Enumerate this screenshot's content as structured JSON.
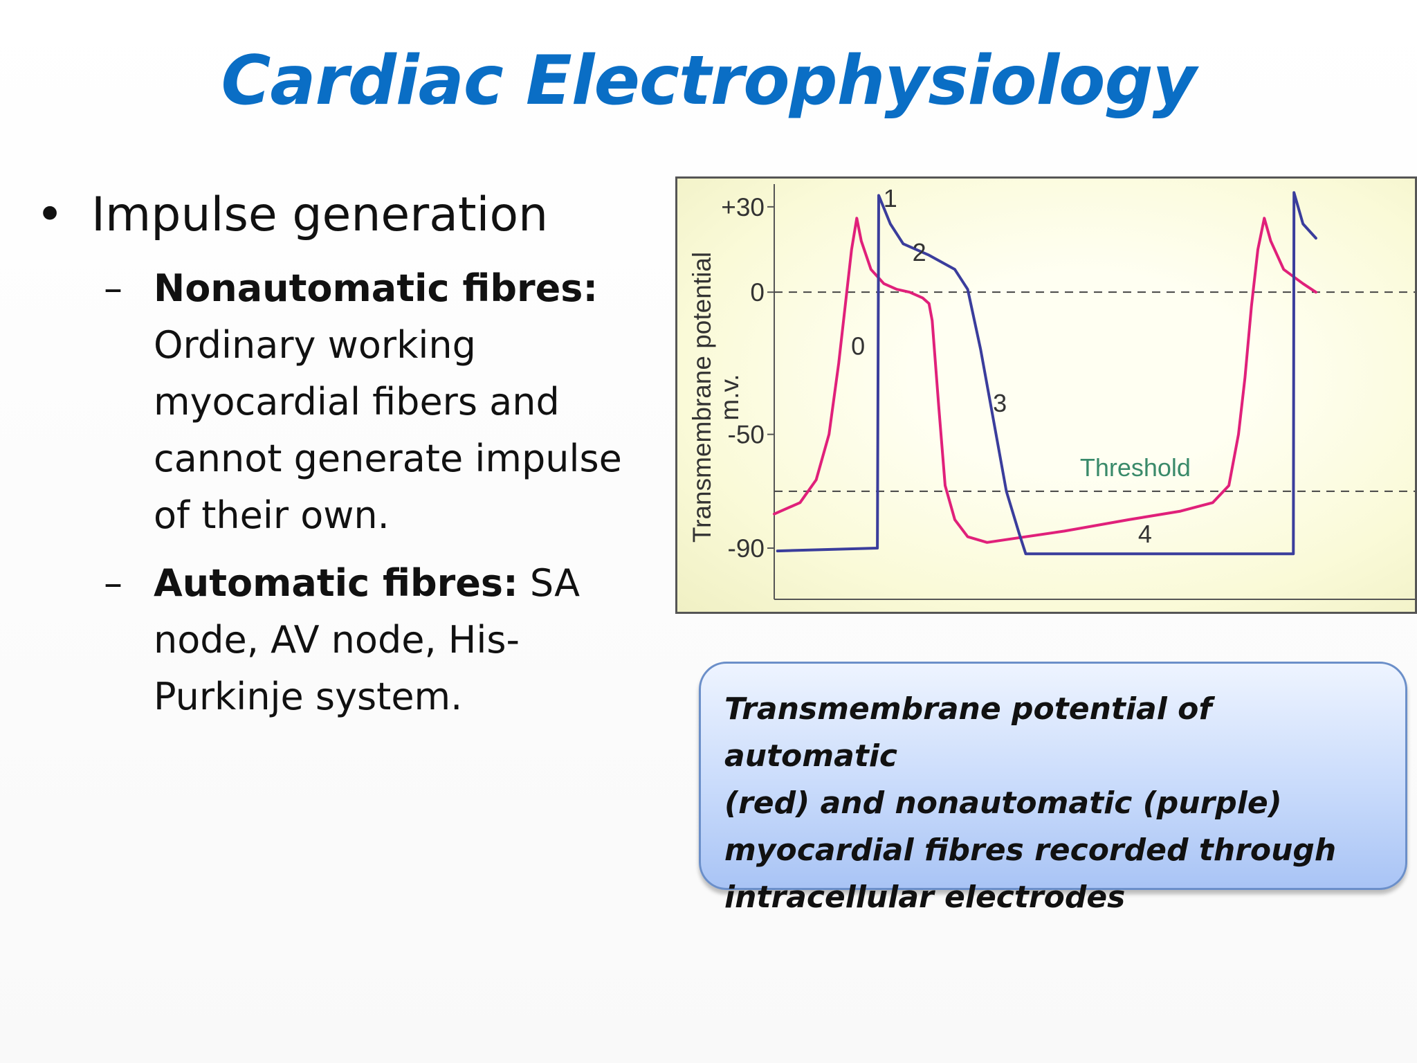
{
  "slide": {
    "title": "Cardiac Electrophysiology",
    "bullet_1": "Impulse generation",
    "sub_1_bold": "Nonautomatic fibres:",
    "sub_1_lines": [
      "Ordinary working",
      "myocardial fibers and",
      "cannot generate impulse",
      "of their own."
    ],
    "sub_2_bold": "Automatic fibres:",
    "sub_2_first": " SA",
    "sub_2_lines": [
      "node, AV node, His-",
      "Purkinje system."
    ],
    "dash": "–",
    "bullet_glyph": "•"
  },
  "chart_data": {
    "type": "line",
    "ylabel": "Transmembrane potential",
    "ylabel_unit": "m.v.",
    "yticks": [
      "+30",
      "0",
      "-50",
      "-90"
    ],
    "ylim": [
      -108,
      38
    ],
    "xlim": [
      0,
      100
    ],
    "reference_lines": [
      {
        "y": 0,
        "label": ""
      },
      {
        "y": -70,
        "label": "Threshold",
        "color": "#3a8a6a"
      }
    ],
    "phase_labels": [
      {
        "text": "0",
        "x": 13,
        "y": -22
      },
      {
        "text": "1",
        "x": 18,
        "y": 30
      },
      {
        "text": "2",
        "x": 22.5,
        "y": 11
      },
      {
        "text": "3",
        "x": 35,
        "y": -42
      },
      {
        "text": "4",
        "x": 57.5,
        "y": -88
      }
    ],
    "series": [
      {
        "name": "automatic",
        "color": "#e0207a",
        "points": [
          [
            0,
            -78
          ],
          [
            4,
            -74
          ],
          [
            6.5,
            -66
          ],
          [
            8.5,
            -50
          ],
          [
            10,
            -25
          ],
          [
            11,
            -5
          ],
          [
            12,
            15
          ],
          [
            12.8,
            26
          ],
          [
            13.5,
            18
          ],
          [
            15,
            8
          ],
          [
            17,
            3
          ],
          [
            19,
            1
          ],
          [
            21,
            0
          ],
          [
            23,
            -2
          ],
          [
            24,
            -4
          ],
          [
            24.5,
            -10
          ],
          [
            25.5,
            -40
          ],
          [
            26.5,
            -68
          ],
          [
            28,
            -80
          ],
          [
            30,
            -86
          ],
          [
            33,
            -88
          ],
          [
            36,
            -87
          ],
          [
            45,
            -84
          ],
          [
            55,
            -80
          ],
          [
            63,
            -77
          ],
          [
            68,
            -74
          ],
          [
            70.5,
            -68
          ],
          [
            72,
            -50
          ],
          [
            73,
            -30
          ],
          [
            74,
            -5
          ],
          [
            75,
            15
          ],
          [
            76,
            26
          ],
          [
            77,
            18
          ],
          [
            79,
            8
          ],
          [
            82,
            3
          ],
          [
            84,
            0
          ]
        ]
      },
      {
        "name": "nonautomatic",
        "color": "#3a3d9c",
        "points": [
          [
            0.5,
            -91
          ],
          [
            16,
            -90
          ],
          [
            16.2,
            34
          ],
          [
            18,
            24
          ],
          [
            20,
            17
          ],
          [
            24,
            13
          ],
          [
            28,
            8
          ],
          [
            30,
            1
          ],
          [
            32,
            -20
          ],
          [
            34,
            -45
          ],
          [
            36,
            -70
          ],
          [
            38,
            -85
          ],
          [
            39,
            -92
          ],
          [
            60,
            -92
          ],
          [
            80.5,
            -92
          ],
          [
            80.6,
            35
          ],
          [
            82,
            24
          ],
          [
            84,
            19
          ]
        ]
      }
    ]
  },
  "caption": {
    "lines": [
      "Transmembrane potential of automatic",
      "(red) and nonautomatic (purple)",
      "myocardial fibres recorded through",
      "intracellular electrodes"
    ]
  }
}
